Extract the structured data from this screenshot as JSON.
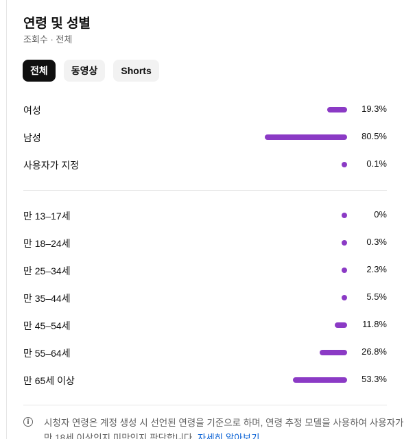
{
  "header": {
    "title": "연령 및 성별",
    "subtitle": "조회수 · 전체"
  },
  "chips": [
    {
      "label": "전체",
      "active": true
    },
    {
      "label": "동영상",
      "active": false
    },
    {
      "label": "Shorts",
      "active": false
    }
  ],
  "gender": [
    {
      "label": "여성",
      "value": 19.3,
      "display": "19.3%"
    },
    {
      "label": "남성",
      "value": 80.5,
      "display": "80.5%"
    },
    {
      "label": "사용자가 지정",
      "value": 0.1,
      "display": "0.1%"
    }
  ],
  "age": [
    {
      "label": "만 13–17세",
      "value": 0,
      "display": "0%"
    },
    {
      "label": "만 18–24세",
      "value": 0.3,
      "display": "0.3%"
    },
    {
      "label": "만 25–34세",
      "value": 2.3,
      "display": "2.3%"
    },
    {
      "label": "만 35–44세",
      "value": 5.5,
      "display": "5.5%"
    },
    {
      "label": "만 45–54세",
      "value": 11.8,
      "display": "11.8%"
    },
    {
      "label": "만 55–64세",
      "value": 26.8,
      "display": "26.8%"
    },
    {
      "label": "만 65세 이상",
      "value": 53.3,
      "display": "53.3%"
    }
  ],
  "footnote": {
    "text": "시청자 연령은 계정 생성 시 선언된 연령을 기준으로 하며, 연령 추정 모델을 사용하여 사용자가 만 18세 이상인지 미만인지 판단합니다. ",
    "link": "자세히 알아보기"
  },
  "colors": {
    "bar": "#8b3ac5",
    "active_chip_bg": "#0f0f0f",
    "link": "#065fd4"
  }
}
